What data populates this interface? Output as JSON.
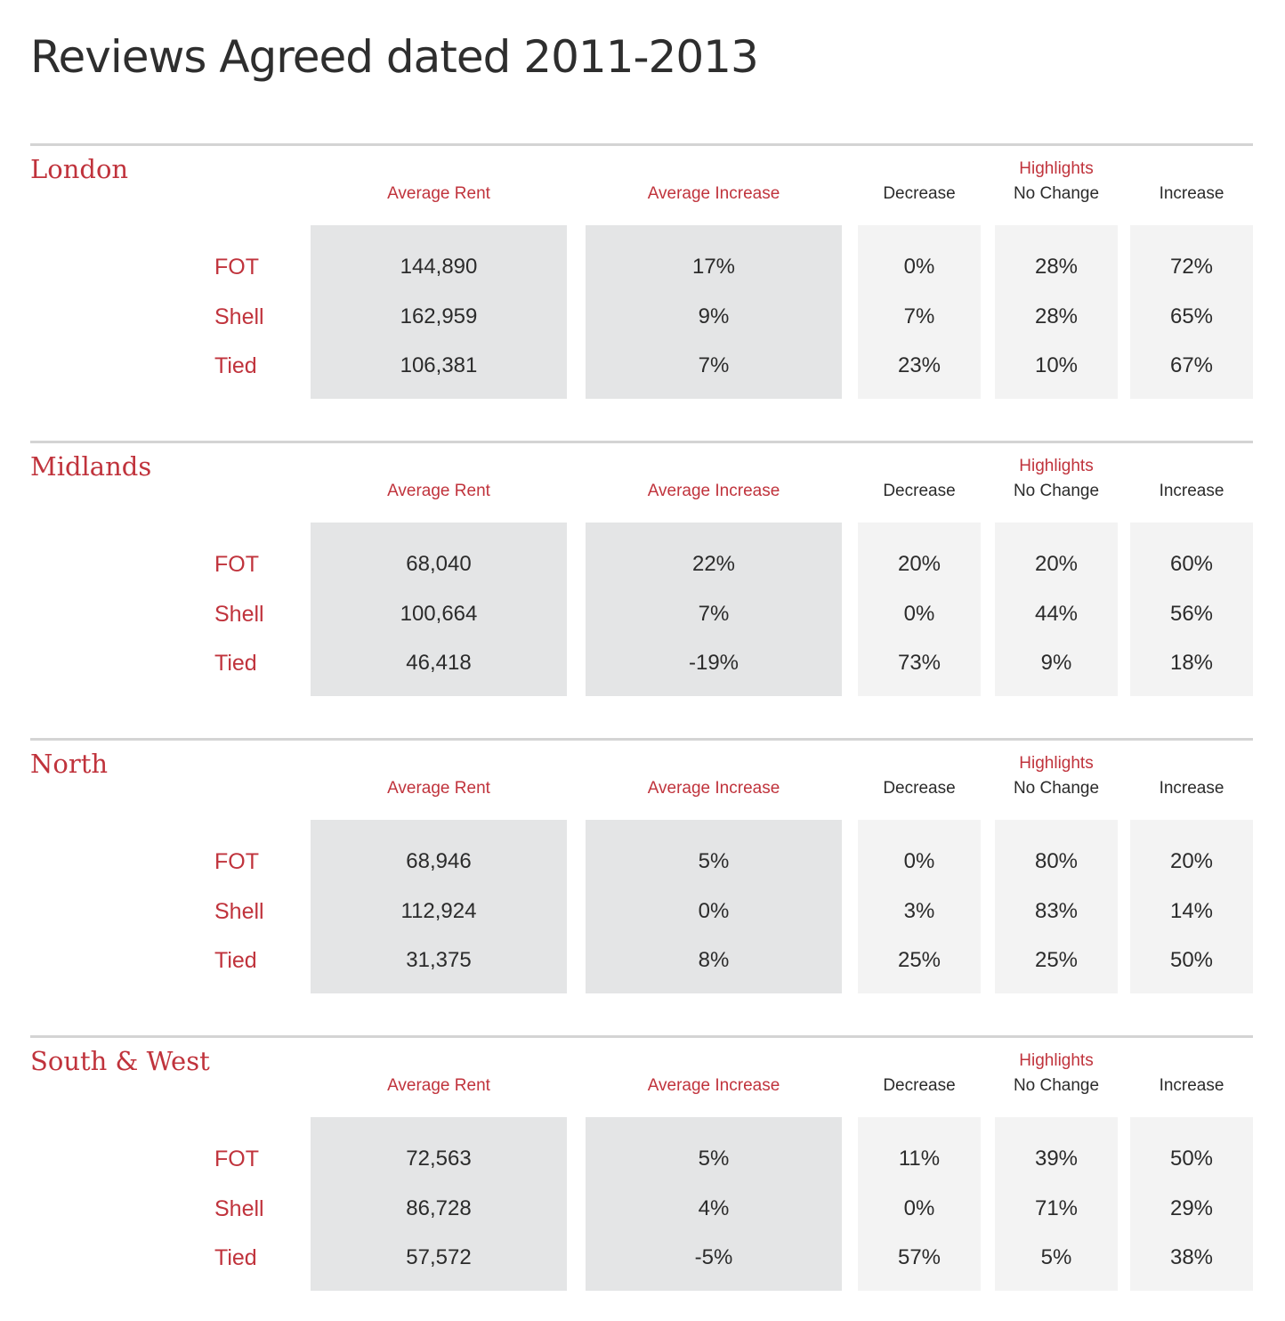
{
  "title": "Reviews Agreed dated 2011-2013",
  "headers": {
    "average_rent": "Average Rent",
    "average_increase": "Average Increase",
    "highlights": "Highlights",
    "decrease": "Decrease",
    "no_change": "No Change",
    "increase": "Increase"
  },
  "colors": {
    "accent_red": "#c0333c",
    "panel_dark": "#e4e5e6",
    "panel_light": "#f3f3f3",
    "rule": "#d4d4d4"
  },
  "regions": [
    {
      "name": "London",
      "rows": [
        {
          "label": "FOT",
          "average_rent": "144,890",
          "average_increase": "17%",
          "decrease": "0%",
          "no_change": "28%",
          "increase": "72%"
        },
        {
          "label": "Shell",
          "average_rent": "162,959",
          "average_increase": "9%",
          "decrease": "7%",
          "no_change": "28%",
          "increase": "65%"
        },
        {
          "label": "Tied",
          "average_rent": "106,381",
          "average_increase": "7%",
          "decrease": "23%",
          "no_change": "10%",
          "increase": "67%"
        }
      ]
    },
    {
      "name": "Midlands",
      "rows": [
        {
          "label": "FOT",
          "average_rent": "68,040",
          "average_increase": "22%",
          "decrease": "20%",
          "no_change": "20%",
          "increase": "60%"
        },
        {
          "label": "Shell",
          "average_rent": "100,664",
          "average_increase": "7%",
          "decrease": "0%",
          "no_change": "44%",
          "increase": "56%"
        },
        {
          "label": "Tied",
          "average_rent": "46,418",
          "average_increase": "-19%",
          "decrease": "73%",
          "no_change": "9%",
          "increase": "18%"
        }
      ]
    },
    {
      "name": "North",
      "rows": [
        {
          "label": "FOT",
          "average_rent": "68,946",
          "average_increase": "5%",
          "decrease": "0%",
          "no_change": "80%",
          "increase": "20%"
        },
        {
          "label": "Shell",
          "average_rent": "112,924",
          "average_increase": "0%",
          "decrease": "3%",
          "no_change": "83%",
          "increase": "14%"
        },
        {
          "label": "Tied",
          "average_rent": "31,375",
          "average_increase": "8%",
          "decrease": "25%",
          "no_change": "25%",
          "increase": "50%"
        }
      ]
    },
    {
      "name": "South & West",
      "rows": [
        {
          "label": "FOT",
          "average_rent": "72,563",
          "average_increase": "5%",
          "decrease": "11%",
          "no_change": "39%",
          "increase": "50%"
        },
        {
          "label": "Shell",
          "average_rent": "86,728",
          "average_increase": "4%",
          "decrease": "0%",
          "no_change": "71%",
          "increase": "29%"
        },
        {
          "label": "Tied",
          "average_rent": "57,572",
          "average_increase": "-5%",
          "decrease": "57%",
          "no_change": "5%",
          "increase": "38%"
        }
      ]
    }
  ]
}
